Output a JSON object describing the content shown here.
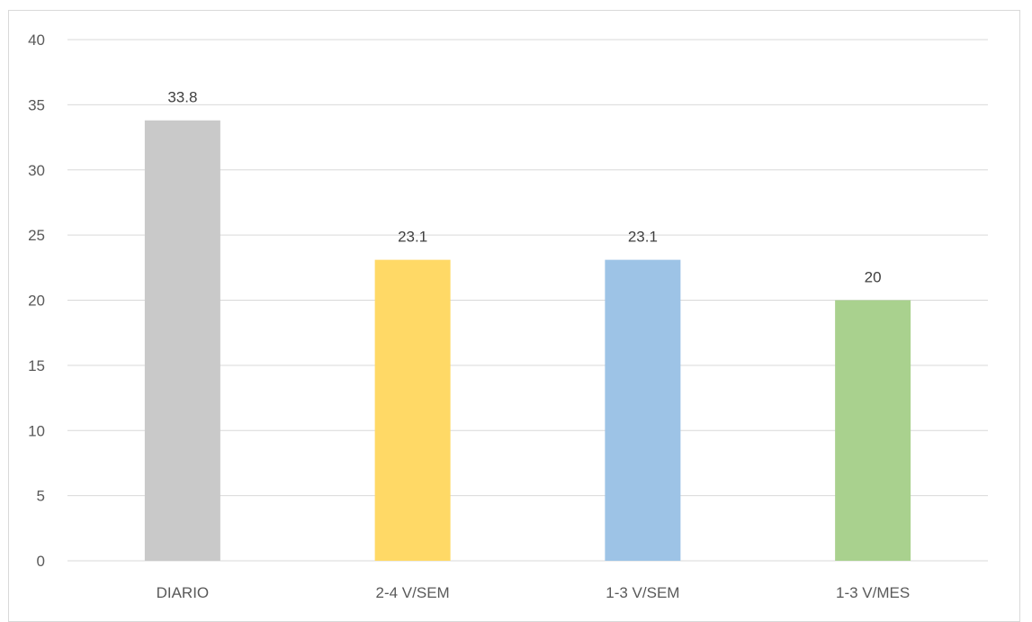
{
  "chart_data": {
    "type": "bar",
    "categories": [
      "DIARIO",
      "2-4 V/SEM",
      "1-3 V/SEM",
      "1-3 V/MES"
    ],
    "values": [
      33.8,
      23.1,
      23.1,
      20
    ],
    "value_labels": [
      "33.8",
      "23.1",
      "23.1",
      "20"
    ],
    "colors": [
      "#c9c9c9",
      "#ffd966",
      "#9dc3e6",
      "#a9d18e"
    ],
    "title": "",
    "xlabel": "",
    "ylabel": "",
    "ylim": [
      0,
      40
    ],
    "yticks": [
      0,
      5,
      10,
      15,
      20,
      25,
      30,
      35,
      40
    ],
    "grid": true,
    "legend": "none"
  }
}
